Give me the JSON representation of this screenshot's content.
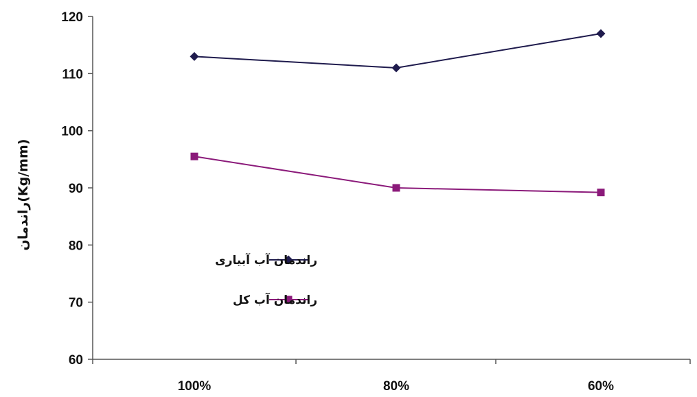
{
  "chart_data": {
    "type": "line",
    "categories": [
      "100%",
      "80%",
      "60%"
    ],
    "series": [
      {
        "name": "راندمان آب آبیاری",
        "values": [
          113,
          111,
          117
        ],
        "color": "#1f1b4d",
        "marker": "diamond"
      },
      {
        "name": "راندمان آب کل",
        "values": [
          95.5,
          90,
          89.2
        ],
        "color": "#8b1a7a",
        "marker": "square"
      }
    ],
    "ylabel": "راندمان(Kg/mm)",
    "xlabel": "",
    "title": "",
    "ylim": [
      60,
      120
    ],
    "yticks": [
      60,
      70,
      80,
      90,
      100,
      110,
      120
    ],
    "grid": false,
    "legend_position": "center-left"
  }
}
